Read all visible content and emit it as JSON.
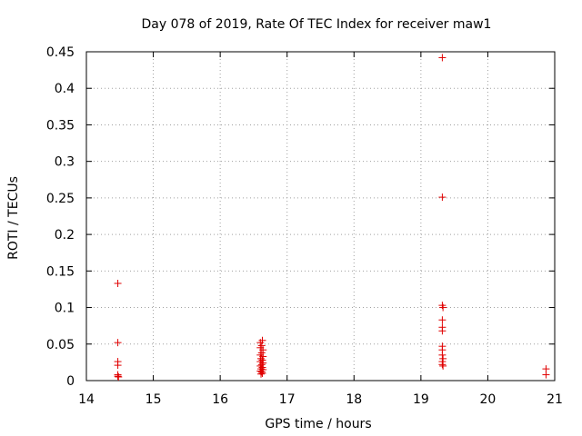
{
  "chart_data": {
    "type": "scatter",
    "title": "Day 078 of 2019, Rate Of TEC Index for receiver maw1",
    "xlabel": "GPS time / hours",
    "ylabel": "ROTI / TECUs",
    "xlim": [
      14,
      21
    ],
    "ylim": [
      0,
      0.45
    ],
    "xticks": [
      14,
      15,
      16,
      17,
      18,
      19,
      20,
      21
    ],
    "xtick_labels": [
      "14",
      "15",
      "16",
      "17",
      "18",
      "19",
      "20",
      "21"
    ],
    "yticks": [
      0,
      0.05,
      0.1,
      0.15,
      0.2,
      0.25,
      0.3,
      0.35,
      0.4,
      0.45
    ],
    "ytick_labels": [
      "0",
      "0.05",
      "0.1",
      "0.15",
      "0.2",
      "0.25",
      "0.3",
      "0.35",
      "0.4",
      "0.45"
    ],
    "grid": true,
    "marker": "+",
    "marker_color": "#e00000",
    "series": [
      {
        "name": "ROTI",
        "points": [
          [
            14.47,
            0.133
          ],
          [
            14.47,
            0.052
          ],
          [
            14.47,
            0.026
          ],
          [
            14.47,
            0.021
          ],
          [
            14.47,
            0.008
          ],
          [
            14.47,
            0.006
          ],
          [
            14.48,
            0.005
          ],
          [
            16.6,
            0.052
          ],
          [
            16.63,
            0.055
          ],
          [
            16.62,
            0.048
          ],
          [
            16.6,
            0.045
          ],
          [
            16.64,
            0.042
          ],
          [
            16.62,
            0.038
          ],
          [
            16.6,
            0.035
          ],
          [
            16.64,
            0.033
          ],
          [
            16.61,
            0.03
          ],
          [
            16.63,
            0.028
          ],
          [
            16.6,
            0.026
          ],
          [
            16.64,
            0.024
          ],
          [
            16.62,
            0.022
          ],
          [
            16.6,
            0.02
          ],
          [
            16.63,
            0.018
          ],
          [
            16.61,
            0.016
          ],
          [
            16.64,
            0.015
          ],
          [
            16.6,
            0.013
          ],
          [
            16.62,
            0.012
          ],
          [
            16.63,
            0.01
          ],
          [
            16.61,
            0.009
          ],
          [
            19.32,
            0.442
          ],
          [
            19.32,
            0.251
          ],
          [
            19.32,
            0.103
          ],
          [
            19.33,
            0.1
          ],
          [
            19.32,
            0.083
          ],
          [
            19.32,
            0.073
          ],
          [
            19.32,
            0.068
          ],
          [
            19.32,
            0.047
          ],
          [
            19.32,
            0.042
          ],
          [
            19.32,
            0.035
          ],
          [
            19.33,
            0.03
          ],
          [
            19.32,
            0.026
          ],
          [
            19.32,
            0.022
          ],
          [
            19.33,
            0.02
          ],
          [
            20.87,
            0.016
          ],
          [
            20.87,
            0.008
          ]
        ]
      }
    ]
  }
}
